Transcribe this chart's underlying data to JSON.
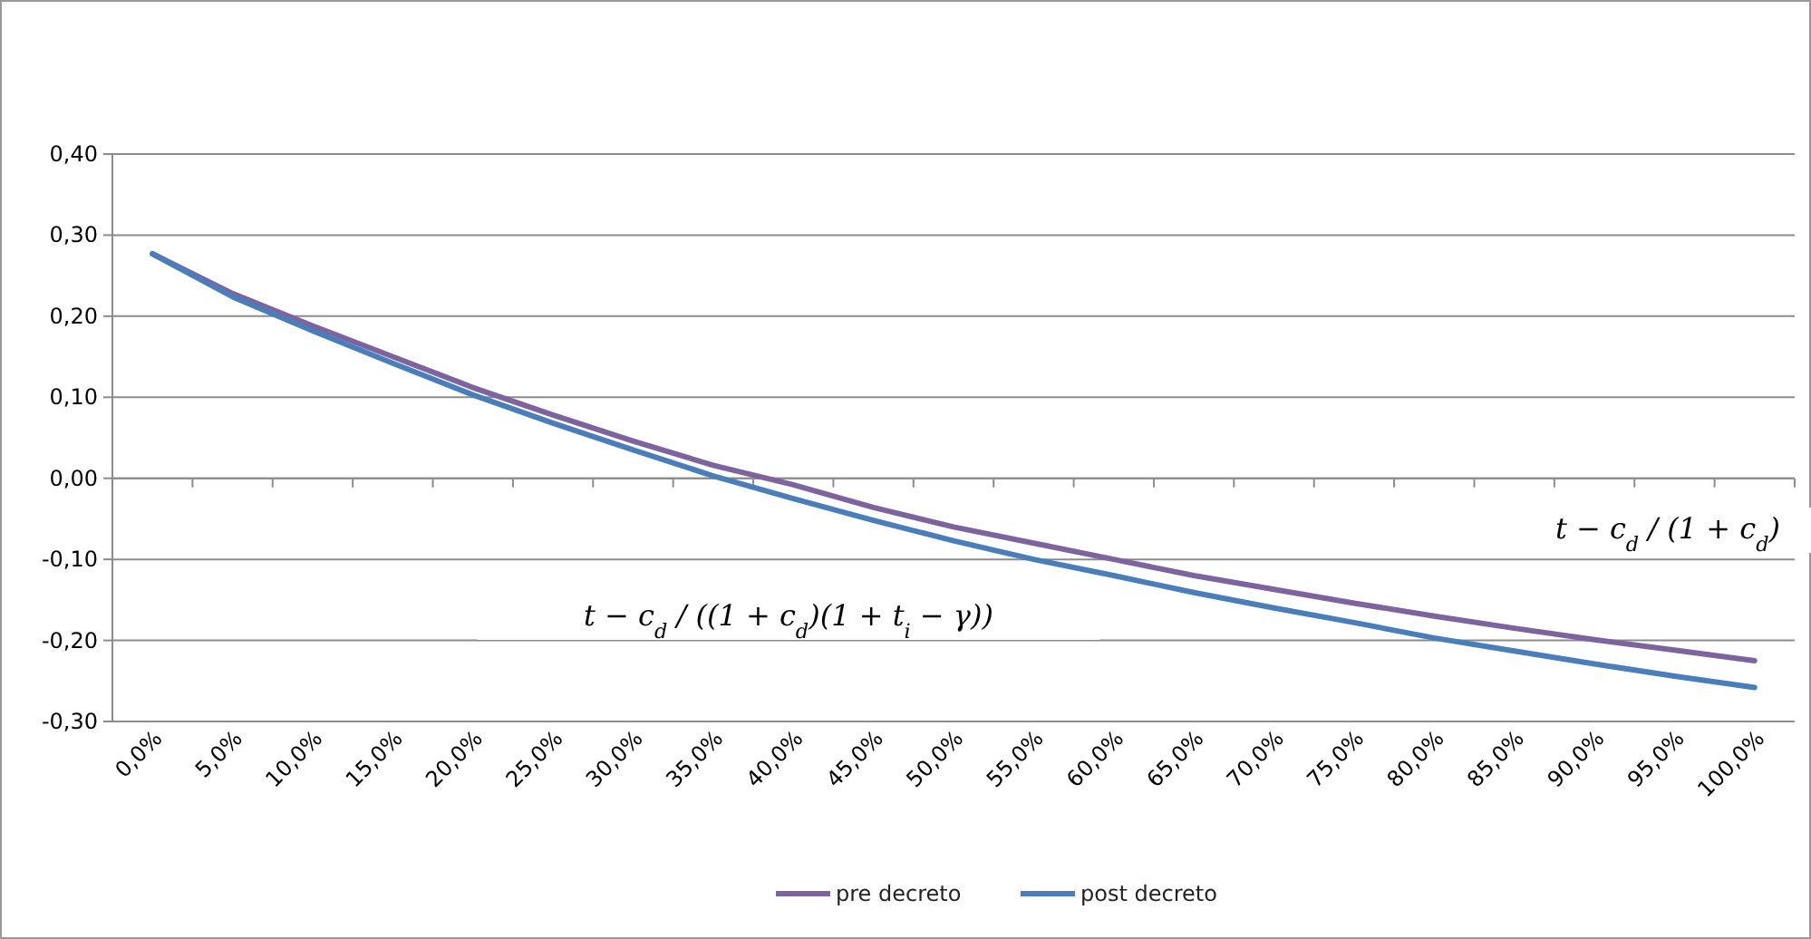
{
  "chart_data": {
    "type": "line",
    "categories": [
      "0,0%",
      "5,0%",
      "10,0%",
      "15,0%",
      "20,0%",
      "25,0%",
      "30,0%",
      "35,0%",
      "40,0%",
      "45,0%",
      "50,0%",
      "55,0%",
      "60,0%",
      "65,0%",
      "70,0%",
      "75,0%",
      "80,0%",
      "85,0%",
      "90,0%",
      "95,0%",
      "100,0%"
    ],
    "series": [
      {
        "name": "pre decreto",
        "color": "#7e649e",
        "values": [
          0.277,
          0.228,
          0.188,
          0.15,
          0.112,
          0.078,
          0.046,
          0.016,
          -0.008,
          -0.036,
          -0.06,
          -0.08,
          -0.1,
          -0.12,
          -0.137,
          -0.154,
          -0.17,
          -0.185,
          -0.199,
          -0.212,
          -0.225
        ]
      },
      {
        "name": "post decreto",
        "color": "#4a7ebb",
        "values": [
          0.277,
          0.224,
          0.182,
          0.142,
          0.103,
          0.068,
          0.035,
          0.003,
          -0.025,
          -0.052,
          -0.077,
          -0.1,
          -0.12,
          -0.141,
          -0.16,
          -0.178,
          -0.197,
          -0.213,
          -0.229,
          -0.244,
          -0.258
        ]
      }
    ],
    "ylim": [
      -0.3,
      0.4
    ],
    "yticks": [
      {
        "value": -0.3,
        "label": "-0,30"
      },
      {
        "value": -0.2,
        "label": "-0,20"
      },
      {
        "value": -0.1,
        "label": "-0,10"
      },
      {
        "value": 0,
        "label": "0,00"
      },
      {
        "value": 0.1,
        "label": "0,10"
      },
      {
        "value": 0.2,
        "label": "0,20"
      },
      {
        "value": 0.3,
        "label": "0,30"
      },
      {
        "value": 0.4,
        "label": "0,40"
      }
    ],
    "grid": "y",
    "legend": "bottom",
    "marker": "none",
    "line_style": "solid",
    "annotations": [
      "t − c$_{d}$ / ((1 + c$_{d}$)(1 + t$_{i}$ − γ))",
      "t − c$_{d}$ / (1 + c$_{d}$)"
    ]
  }
}
